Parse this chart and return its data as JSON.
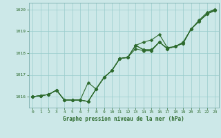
{
  "title": "Graphe pression niveau de la mer (hPa)",
  "xlim": [
    -0.5,
    23.5
  ],
  "ylim": [
    1015.5,
    1020.3
  ],
  "yticks": [
    1016,
    1017,
    1018,
    1019,
    1020
  ],
  "xticks": [
    0,
    1,
    2,
    3,
    4,
    5,
    6,
    7,
    8,
    9,
    10,
    11,
    12,
    13,
    14,
    15,
    16,
    17,
    18,
    19,
    20,
    21,
    22,
    23
  ],
  "bg_color": "#cce8e8",
  "grid_color": "#99cccc",
  "line_color": "#2d6a2d",
  "line1_x": [
    0,
    1,
    2,
    3,
    4,
    5,
    6,
    7,
    8,
    9,
    10,
    11,
    12,
    13,
    14,
    15,
    16,
    17,
    18,
    19,
    20,
    21,
    22,
    23
  ],
  "line1": [
    1016.0,
    1016.05,
    1016.1,
    1016.3,
    1015.85,
    1015.85,
    1015.85,
    1015.78,
    1016.35,
    1016.88,
    1017.2,
    1017.75,
    1017.8,
    1018.35,
    1018.15,
    1018.15,
    1018.5,
    1018.2,
    1018.3,
    1018.45,
    1019.1,
    1019.45,
    1019.78,
    1020.0
  ],
  "line2_x": [
    0,
    1,
    2,
    3,
    4,
    5,
    6,
    7,
    8,
    9,
    10,
    11,
    12,
    13,
    14,
    15,
    16,
    17,
    18,
    19,
    20,
    21,
    22,
    23
  ],
  "line2": [
    1016.0,
    1016.05,
    1016.1,
    1016.3,
    1015.85,
    1015.85,
    1015.85,
    1015.78,
    1016.35,
    1016.88,
    1017.2,
    1017.75,
    1017.8,
    1018.35,
    1018.15,
    1018.15,
    1018.5,
    1018.2,
    1018.3,
    1018.45,
    1019.1,
    1019.45,
    1019.78,
    1019.95
  ],
  "line3_x": [
    0,
    1,
    2,
    3,
    4,
    5,
    6,
    7,
    8,
    9,
    10,
    11,
    12,
    13,
    14,
    15,
    16,
    17,
    18,
    19,
    20,
    21,
    22,
    23
  ],
  "line3": [
    1016.0,
    1016.05,
    1016.1,
    1016.3,
    1015.85,
    1015.85,
    1015.85,
    1015.78,
    1016.35,
    1016.88,
    1017.2,
    1017.75,
    1017.8,
    1018.2,
    1018.1,
    1018.1,
    1018.5,
    1018.2,
    1018.3,
    1018.45,
    1019.1,
    1019.45,
    1019.78,
    1019.95
  ],
  "line4_x": [
    0,
    1,
    2,
    3,
    4,
    5,
    6,
    7,
    8,
    9,
    10,
    11,
    12,
    13,
    14,
    15,
    16,
    17,
    18,
    19,
    20,
    21,
    22,
    23
  ],
  "line4": [
    1016.0,
    1016.05,
    1016.1,
    1016.3,
    1015.85,
    1015.85,
    1015.85,
    1016.65,
    1016.35,
    1016.88,
    1017.2,
    1017.75,
    1017.8,
    1018.35,
    1018.5,
    1018.6,
    1018.85,
    1018.25,
    1018.3,
    1018.5,
    1019.1,
    1019.5,
    1019.85,
    1020.0
  ]
}
